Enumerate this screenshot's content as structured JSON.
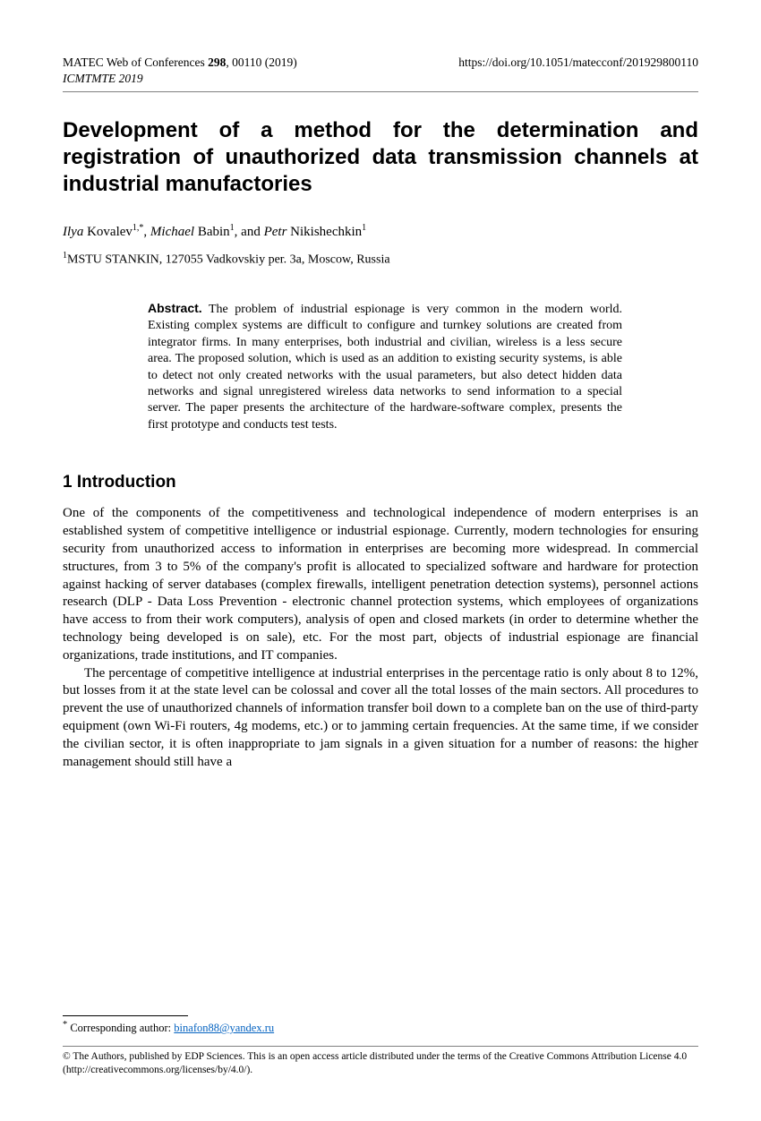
{
  "header": {
    "journal_line": "MATEC Web of Conferences 298, 00110 (2019)",
    "journal_bold": "298",
    "doi": "https://doi.org/10.1051/matecconf/201929800110",
    "conference": "ICMTMTE 2019"
  },
  "title": "Development of a method for the determination and registration of unauthorized data transmission channels at industrial manufactories",
  "authors": {
    "a1_first": "Ilya",
    "a1_last": "Kovalev",
    "a1_sup": "1,*",
    "a2_first": "Michael",
    "a2_last": "Babin",
    "a2_sup": "1",
    "a3_first": "Petr",
    "a3_last": "Nikishechkin",
    "a3_sup": "1"
  },
  "affiliation": {
    "sup": "1",
    "text": "MSTU STANKIN, 127055 Vadkovskiy per. 3a, Moscow, Russia"
  },
  "abstract": {
    "label": "Abstract.",
    "text": "The problem of industrial espionage is very common in the modern world. Existing complex systems are difficult to configure and turnkey solutions are created from integrator firms. In many enterprises, both industrial and civilian, wireless is a less secure area. The proposed solution, which is used as an addition to existing security systems, is able to detect not only created networks with the usual parameters, but also detect hidden data networks and signal unregistered wireless data networks to send information to a special server. The paper presents the architecture of the hardware-software complex, presents the first prototype and conducts test tests."
  },
  "section1": {
    "heading": "1 Introduction",
    "p1": "One of the components of the competitiveness and technological independence of modern enterprises is an established system of competitive intelligence or industrial espionage. Currently, modern technologies for ensuring security from unauthorized access to information in enterprises are becoming more widespread. In commercial structures, from 3 to 5% of the company's profit is allocated to specialized software and hardware for protection against hacking of server databases (complex firewalls, intelligent penetration detection systems), personnel actions research (DLP - Data Loss Prevention - electronic channel protection systems, which employees of organizations have access to from their work computers), analysis of open and closed markets (in order to determine whether the technology being developed is on sale), etc. For the most part, objects of industrial espionage are financial organizations, trade institutions, and IT companies.",
    "p2": "The percentage of competitive intelligence at industrial enterprises in the percentage ratio is only about 8 to 12%, but losses from it at the state level can be colossal and cover all the total losses of the main sectors. All procedures to prevent the use of unauthorized channels of information transfer boil down to a complete ban on the use of third-party equipment (own Wi-Fi routers, 4g modems, etc.) or to jamming certain frequencies. At the same time, if we consider the civilian sector, it is often inappropriate to jam signals in a given situation for a number of reasons: the higher management should still have a"
  },
  "footnote": {
    "marker": "*",
    "label": "Corresponding author: ",
    "email": "binafon88@yandex.ru"
  },
  "license": "© The Authors, published by EDP Sciences. This is an open access article distributed under the terms of the Creative Commons Attribution License 4.0 (http://creativecommons.org/licenses/by/4.0/)."
}
